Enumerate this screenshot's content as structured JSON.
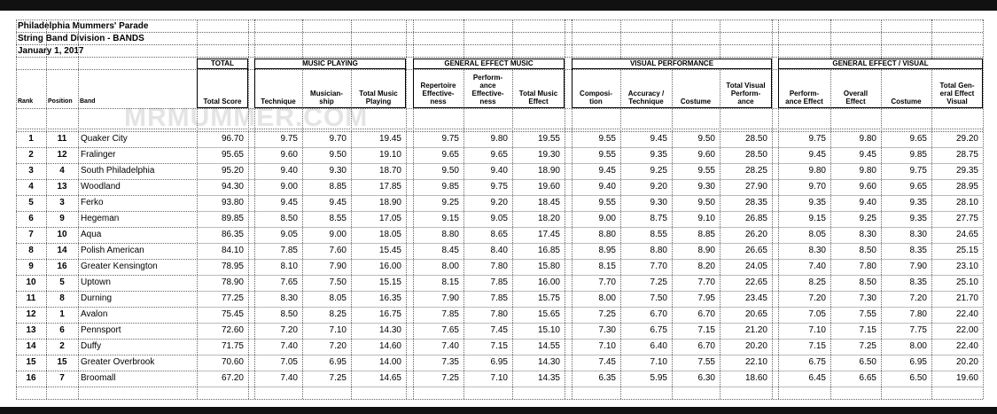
{
  "header": {
    "title": "Philadelphia Mummers' Parade",
    "subtitle": "String Band Division - BANDS",
    "date": "January 1, 2017"
  },
  "watermark": "MRMUMMER.COM",
  "table": {
    "groups": [
      {
        "label": "TOTAL"
      },
      {
        "label": "MUSIC PLAYING"
      },
      {
        "label": "GENERAL EFFECT MUSIC"
      },
      {
        "label": "VISUAL PERFORMANCE"
      },
      {
        "label": "GENERAL EFFECT / VISUAL"
      }
    ],
    "columns": [
      "Rank",
      "Position",
      "Band",
      "Total Score",
      "Technique",
      "Musician-\nship",
      "Total Music\nPlaying",
      "Repertoire\nEffective-\nness",
      "Perform-\nance\nEffective-\nness",
      "Total Music\nEffect",
      "Composi-\ntion",
      "Accuracy /\nTechnique",
      "Costume",
      "Total Visual\nPerform-\nance",
      "Perform-\nance Effect",
      "Overall\nEffect",
      "Costume",
      "Total Gen-\neral Effect\nVisual"
    ],
    "rows": [
      [
        "1",
        "11",
        "Quaker City",
        "96.70",
        "9.75",
        "9.70",
        "19.45",
        "9.75",
        "9.80",
        "19.55",
        "9.55",
        "9.45",
        "9.50",
        "28.50",
        "9.75",
        "9.80",
        "9.65",
        "29.20"
      ],
      [
        "2",
        "12",
        "Fralinger",
        "95.65",
        "9.60",
        "9.50",
        "19.10",
        "9.65",
        "9.65",
        "19.30",
        "9.55",
        "9.35",
        "9.60",
        "28.50",
        "9.45",
        "9.45",
        "9.85",
        "28.75"
      ],
      [
        "3",
        "4",
        "South Philadelphia",
        "95.20",
        "9.40",
        "9.30",
        "18.70",
        "9.50",
        "9.40",
        "18.90",
        "9.45",
        "9.25",
        "9.55",
        "28.25",
        "9.80",
        "9.80",
        "9.75",
        "29.35"
      ],
      [
        "4",
        "13",
        "Woodland",
        "94.30",
        "9.00",
        "8.85",
        "17.85",
        "9.85",
        "9.75",
        "19.60",
        "9.40",
        "9.20",
        "9.30",
        "27.90",
        "9.70",
        "9.60",
        "9.65",
        "28.95"
      ],
      [
        "5",
        "3",
        "Ferko",
        "93.80",
        "9.45",
        "9.45",
        "18.90",
        "9.25",
        "9.20",
        "18.45",
        "9.55",
        "9.30",
        "9.50",
        "28.35",
        "9.35",
        "9.40",
        "9.35",
        "28.10"
      ],
      [
        "6",
        "9",
        "Hegeman",
        "89.85",
        "8.50",
        "8.55",
        "17.05",
        "9.15",
        "9.05",
        "18.20",
        "9.00",
        "8.75",
        "9.10",
        "26.85",
        "9.15",
        "9.25",
        "9.35",
        "27.75"
      ],
      [
        "7",
        "10",
        "Aqua",
        "86.35",
        "9.05",
        "9.00",
        "18.05",
        "8.80",
        "8.65",
        "17.45",
        "8.80",
        "8.55",
        "8.85",
        "26.20",
        "8.05",
        "8.30",
        "8.30",
        "24.65"
      ],
      [
        "8",
        "14",
        "Polish American",
        "84.10",
        "7.85",
        "7.60",
        "15.45",
        "8.45",
        "8.40",
        "16.85",
        "8.95",
        "8.80",
        "8.90",
        "26.65",
        "8.30",
        "8.50",
        "8.35",
        "25.15"
      ],
      [
        "9",
        "16",
        "Greater Kensington",
        "78.95",
        "8.10",
        "7.90",
        "16.00",
        "8.00",
        "7.80",
        "15.80",
        "8.15",
        "7.70",
        "8.20",
        "24.05",
        "7.40",
        "7.80",
        "7.90",
        "23.10"
      ],
      [
        "10",
        "5",
        "Uptown",
        "78.90",
        "7.65",
        "7.50",
        "15.15",
        "8.15",
        "7.85",
        "16.00",
        "7.70",
        "7.25",
        "7.70",
        "22.65",
        "8.25",
        "8.50",
        "8.35",
        "25.10"
      ],
      [
        "11",
        "8",
        "Durning",
        "77.25",
        "8.30",
        "8.05",
        "16.35",
        "7.90",
        "7.85",
        "15.75",
        "8.00",
        "7.50",
        "7.95",
        "23.45",
        "7.20",
        "7.30",
        "7.20",
        "21.70"
      ],
      [
        "12",
        "1",
        "Avalon",
        "75.45",
        "8.50",
        "8.25",
        "16.75",
        "7.85",
        "7.80",
        "15.65",
        "7.25",
        "6.70",
        "6.70",
        "20.65",
        "7.05",
        "7.55",
        "7.80",
        "22.40"
      ],
      [
        "13",
        "6",
        "Pennsport",
        "72.60",
        "7.20",
        "7.10",
        "14.30",
        "7.65",
        "7.45",
        "15.10",
        "7.30",
        "6.75",
        "7.15",
        "21.20",
        "7.10",
        "7.15",
        "7.75",
        "22.00"
      ],
      [
        "14",
        "2",
        "Duffy",
        "71.75",
        "7.40",
        "7.20",
        "14.60",
        "7.40",
        "7.15",
        "14.55",
        "7.10",
        "6.40",
        "6.70",
        "20.20",
        "7.15",
        "7.25",
        "8.00",
        "22.40"
      ],
      [
        "15",
        "15",
        "Greater Overbrook",
        "70.60",
        "7.05",
        "6.95",
        "14.00",
        "7.35",
        "6.95",
        "14.30",
        "7.45",
        "7.10",
        "7.55",
        "22.10",
        "6.75",
        "6.50",
        "6.95",
        "20.20"
      ],
      [
        "16",
        "7",
        "Broomall",
        "67.20",
        "7.40",
        "7.25",
        "14.65",
        "7.25",
        "7.10",
        "14.35",
        "6.35",
        "5.95",
        "6.30",
        "18.60",
        "6.45",
        "6.65",
        "6.50",
        "19.60"
      ]
    ]
  }
}
